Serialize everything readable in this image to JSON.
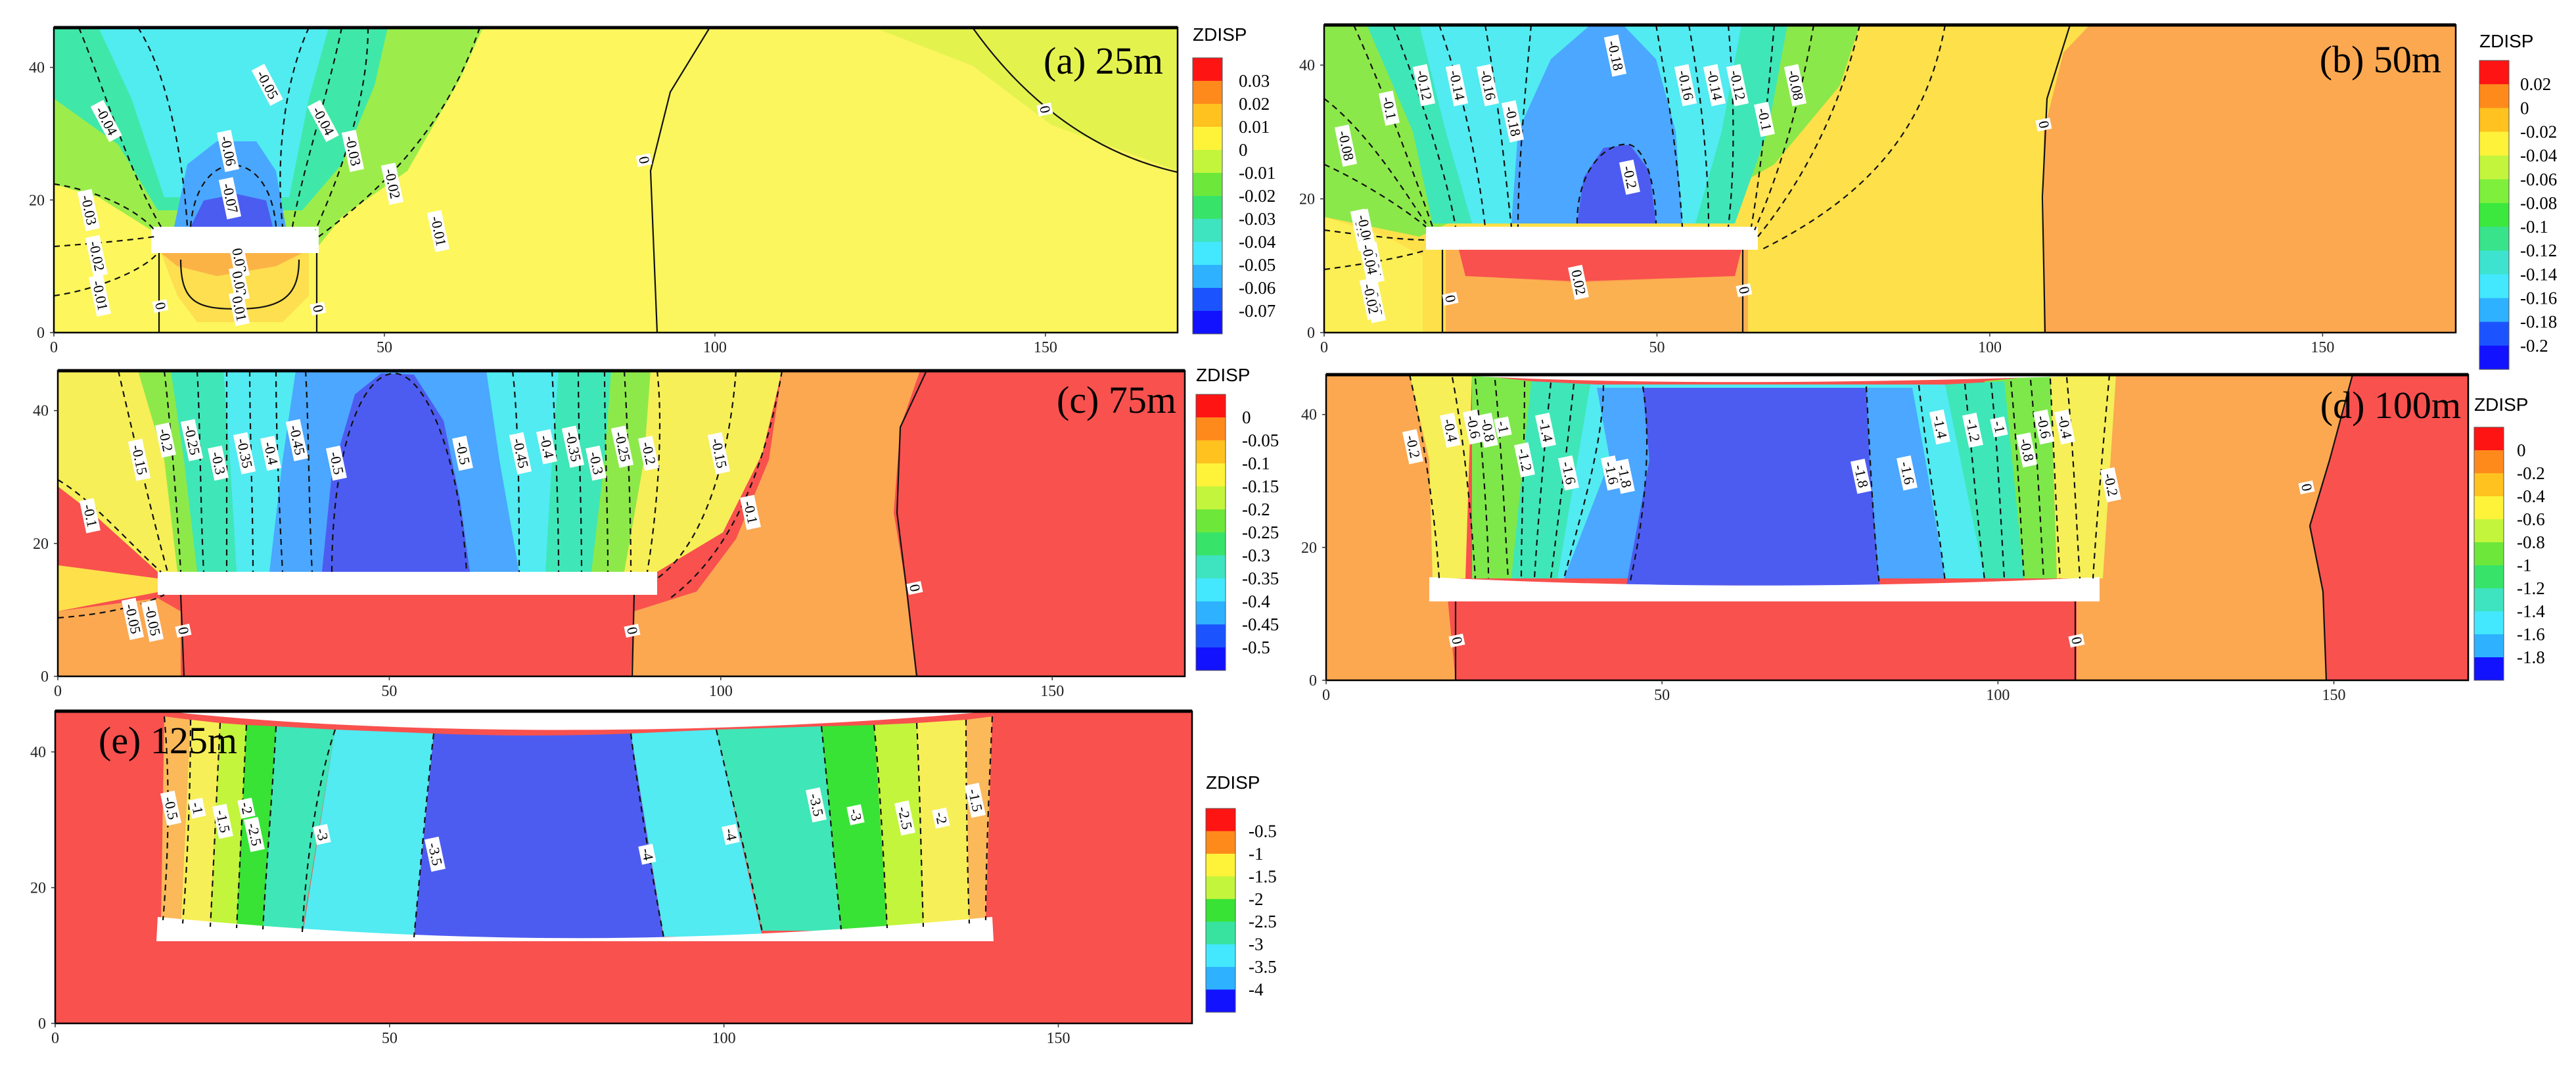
{
  "figure": {
    "panels": [
      {
        "id": "a",
        "title": "(a) 25m",
        "legend_title": "ZDISP",
        "levels": [
          "0.03",
          "0.02",
          "0.01",
          "0",
          "-0.01",
          "-0.02",
          "-0.03",
          "-0.04",
          "-0.05",
          "-0.06",
          "-0.07"
        ],
        "level_colors": [
          "#ff1414",
          "#ff8a1c",
          "#ffc21f",
          "#fff33a",
          "#c3f53c",
          "#6de83a",
          "#38e36a",
          "#3ee3c0",
          "#43e8ff",
          "#2eb1ff",
          "#1b54ff",
          "#1212ff"
        ],
        "contour_labels": [
          "-0.04",
          "-0.05",
          "-0.04",
          "-0.03",
          "-0.02",
          "-0.01",
          "-0.03",
          "-0.02",
          "-0.01",
          "-0.06",
          "-0.07",
          "0.03",
          "0.02",
          "0.01",
          "0",
          "0",
          "0",
          "0"
        ],
        "x_ticks": [
          "0",
          "50",
          "100",
          "150"
        ],
        "y_ticks": [
          "0",
          "20",
          "40"
        ]
      },
      {
        "id": "b",
        "title": "(b) 50m",
        "legend_title": "ZDISP",
        "levels": [
          "0.02",
          "0",
          "-0.02",
          "-0.04",
          "-0.06",
          "-0.08",
          "-0.1",
          "-0.12",
          "-0.14",
          "-0.16",
          "-0.18",
          "-0.2"
        ],
        "level_colors": [
          "#ff1414",
          "#ff8a1c",
          "#ffc21f",
          "#fff33a",
          "#c3f53c",
          "#7ef03c",
          "#3ce83e",
          "#38e38c",
          "#3ee3d0",
          "#43e8ff",
          "#2eb1ff",
          "#1b54ff",
          "#1212ff"
        ],
        "contour_labels": [
          "-0.1",
          "-0.12",
          "-0.14",
          "-0.16",
          "-0.18",
          "-0.18",
          "-0.16",
          "-0.14",
          "-0.12",
          "-0.1",
          "-0.08",
          "-0.06",
          "-0.04",
          "-0.02",
          "-0.08",
          "-0.06",
          "-0.04",
          "-0.02",
          "-0.2",
          "0.02",
          "0",
          "0",
          "0"
        ],
        "x_ticks": [
          "0",
          "50",
          "100",
          "150"
        ],
        "y_ticks": [
          "0",
          "20",
          "40"
        ]
      },
      {
        "id": "c",
        "title": "(c) 75m",
        "legend_title": "ZDISP",
        "levels": [
          "0",
          "-0.05",
          "-0.1",
          "-0.15",
          "-0.2",
          "-0.25",
          "-0.3",
          "-0.35",
          "-0.4",
          "-0.45",
          "-0.5"
        ],
        "level_colors": [
          "#ff1414",
          "#ff8a1c",
          "#ffc21f",
          "#fff33a",
          "#c3f53c",
          "#6de83a",
          "#38e36a",
          "#3ee3c0",
          "#43e8ff",
          "#2eb1ff",
          "#1b54ff",
          "#1212ff"
        ],
        "contour_labels": [
          "-0.15",
          "-0.2",
          "-0.25",
          "-0.3",
          "-0.35",
          "-0.4",
          "-0.45",
          "-0.5",
          "-0.5",
          "-0.45",
          "-0.4",
          "-0.35",
          "-0.3",
          "-0.25",
          "-0.2",
          "-0.15",
          "-0.1",
          "-0.05",
          "-0.1",
          "-0.05",
          "0",
          "0",
          "0"
        ],
        "x_ticks": [
          "0",
          "50",
          "100",
          "150"
        ],
        "y_ticks": [
          "0",
          "20",
          "40"
        ]
      },
      {
        "id": "d",
        "title": "(d) 100m",
        "legend_title": "ZDISP",
        "levels": [
          "0",
          "-0.2",
          "-0.4",
          "-0.6",
          "-0.8",
          "-1",
          "-1.2",
          "-1.4",
          "-1.6",
          "-1.8"
        ],
        "level_colors": [
          "#ff1414",
          "#ff8a1c",
          "#ffc21f",
          "#fff33a",
          "#c3f53c",
          "#6de83a",
          "#38e36a",
          "#3ee3c0",
          "#43e8ff",
          "#2eb1ff",
          "#1212ff"
        ],
        "contour_labels": [
          "-0.2",
          "-0.4",
          "-0.6",
          "-0.8",
          "-1",
          "-1.2",
          "-1.4",
          "-1.6",
          "-1.6",
          "-1.8",
          "-1.8",
          "-1.6",
          "-1.4",
          "-1.2",
          "-1",
          "-0.8",
          "-0.6",
          "-0.4",
          "-0.2",
          "0",
          "0",
          "0"
        ],
        "x_ticks": [
          "0",
          "50",
          "100",
          "150"
        ],
        "y_ticks": [
          "0",
          "20",
          "40"
        ]
      },
      {
        "id": "e",
        "title": "(e) 125m",
        "legend_title": "ZDISP",
        "levels": [
          "-0.5",
          "-1",
          "-1.5",
          "-2",
          "-2.5",
          "-3",
          "-3.5",
          "-4"
        ],
        "level_colors": [
          "#ff1414",
          "#ff8a1c",
          "#fff33a",
          "#c3f53c",
          "#38e336",
          "#38e3a0",
          "#43e8ff",
          "#2eb1ff",
          "#1212ff"
        ],
        "contour_labels": [
          "-0.5",
          "-1",
          "-1.5",
          "-2",
          "-2.5",
          "-3",
          "-3.5",
          "-4",
          "-4",
          "-3.5",
          "-3",
          "-2.5",
          "-2",
          "-1.5",
          "-1",
          "-0.5"
        ],
        "x_ticks": [
          "0",
          "50",
          "100",
          "150"
        ],
        "y_ticks": [
          "0",
          "20",
          "40"
        ]
      }
    ]
  },
  "chart_data": [
    {
      "type": "heatmap",
      "title": "(a) 25m",
      "legend_title": "ZDISP",
      "xlim": [
        0,
        170
      ],
      "ylim": [
        0,
        46
      ],
      "x_ticks": [
        0,
        50,
        100,
        150
      ],
      "y_ticks": [
        0,
        20,
        40
      ],
      "levels": [
        0.03,
        0.02,
        0.01,
        0,
        -0.01,
        -0.02,
        -0.03,
        -0.04,
        -0.05,
        -0.06,
        -0.07
      ],
      "excavation": {
        "x": [
          15,
          40
        ],
        "y": [
          12,
          15
        ]
      }
    },
    {
      "type": "heatmap",
      "title": "(b) 50m",
      "legend_title": "ZDISP",
      "xlim": [
        0,
        170
      ],
      "ylim": [
        0,
        46
      ],
      "x_ticks": [
        0,
        50,
        100,
        150
      ],
      "y_ticks": [
        0,
        20,
        40
      ],
      "levels": [
        0.02,
        0,
        -0.02,
        -0.04,
        -0.06,
        -0.08,
        -0.1,
        -0.12,
        -0.14,
        -0.16,
        -0.18,
        -0.2
      ],
      "excavation": {
        "x": [
          15,
          65
        ],
        "y": [
          12,
          15
        ]
      }
    },
    {
      "type": "heatmap",
      "title": "(c) 75m",
      "legend_title": "ZDISP",
      "xlim": [
        0,
        170
      ],
      "ylim": [
        0,
        46
      ],
      "x_ticks": [
        0,
        50,
        100,
        150
      ],
      "y_ticks": [
        0,
        20,
        40
      ],
      "levels": [
        0,
        -0.05,
        -0.1,
        -0.15,
        -0.2,
        -0.25,
        -0.3,
        -0.35,
        -0.4,
        -0.45,
        -0.5
      ],
      "excavation": {
        "x": [
          15,
          90
        ],
        "y": [
          12,
          15
        ]
      }
    },
    {
      "type": "heatmap",
      "title": "(d) 100m",
      "legend_title": "ZDISP",
      "xlim": [
        0,
        170
      ],
      "ylim": [
        0,
        46
      ],
      "x_ticks": [
        0,
        50,
        100,
        150
      ],
      "y_ticks": [
        0,
        20,
        40
      ],
      "levels": [
        0,
        -0.2,
        -0.4,
        -0.6,
        -0.8,
        -1,
        -1.2,
        -1.4,
        -1.6,
        -1.8
      ],
      "excavation": {
        "x": [
          15,
          115
        ],
        "y": [
          12,
          15
        ]
      }
    },
    {
      "type": "heatmap",
      "title": "(e) 125m",
      "legend_title": "ZDISP",
      "xlim": [
        0,
        170
      ],
      "ylim": [
        0,
        46
      ],
      "x_ticks": [
        0,
        50,
        100,
        150
      ],
      "y_ticks": [
        0,
        20,
        40
      ],
      "levels": [
        -0.5,
        -1,
        -1.5,
        -2,
        -2.5,
        -3,
        -3.5,
        -4
      ],
      "excavation": {
        "x": [
          15,
          140
        ],
        "y": [
          12,
          15
        ]
      }
    }
  ]
}
